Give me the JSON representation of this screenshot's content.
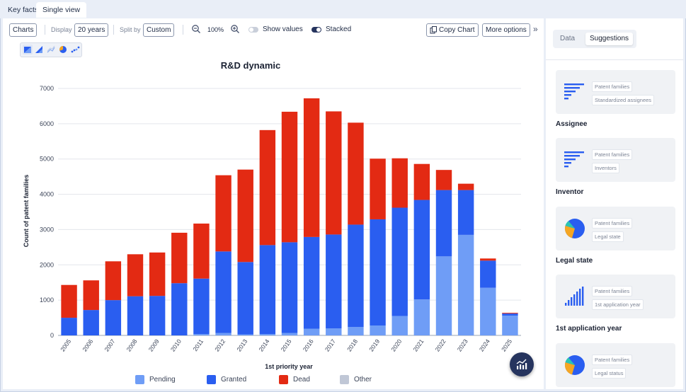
{
  "tabs": [
    {
      "label": "Key facts"
    },
    {
      "label": "Single view"
    }
  ],
  "toolbar": {
    "charts_label": "Charts",
    "display_label": "Display",
    "display_value": "20 years",
    "splitby_label": "Split by",
    "splitby_value": "Custom",
    "zoom_value": "100%",
    "show_values_label": "Show values",
    "show_values_on": false,
    "stacked_label": "Stacked",
    "stacked_on": true,
    "copy_chart_label": "Copy Chart",
    "more_options_label": "More options",
    "collapse_icon": "»"
  },
  "chart_types": [
    "bar-stacked-icon",
    "area-icon",
    "line-icon",
    "pie-icon",
    "scatter-icon"
  ],
  "colors": {
    "pending": "#6f9df6",
    "granted": "#2a5ef0",
    "dead": "#e32a13",
    "other": "#c0c7d6",
    "accent": "#26345e"
  },
  "chart_data": {
    "type": "bar",
    "stacked": true,
    "title": "R&D dynamic",
    "xlabel": "1st priority year",
    "ylabel": "Count of patent families",
    "ylim": [
      0,
      7000
    ],
    "yticks": [
      0,
      1000,
      2000,
      3000,
      4000,
      5000,
      6000,
      7000
    ],
    "grid": true,
    "legend_position": "bottom",
    "categories": [
      "2005",
      "2006",
      "2007",
      "2008",
      "2009",
      "2010",
      "2011",
      "2012",
      "2013",
      "2014",
      "2015",
      "2016",
      "2017",
      "2018",
      "2019",
      "2020",
      "2021",
      "2022",
      "2023",
      "2024",
      "2025"
    ],
    "series": [
      {
        "name": "Pending",
        "values": [
          0,
          0,
          0,
          0,
          0,
          0,
          40,
          70,
          30,
          40,
          70,
          190,
          200,
          240,
          280,
          550,
          1020,
          2240,
          2850,
          1350,
          560
        ]
      },
      {
        "name": "Granted",
        "values": [
          500,
          720,
          1000,
          1110,
          1120,
          1480,
          1570,
          2310,
          2050,
          2520,
          2570,
          2600,
          2660,
          2900,
          3010,
          3070,
          2820,
          1880,
          1270,
          770,
          60
        ]
      },
      {
        "name": "Dead",
        "values": [
          930,
          840,
          1100,
          1190,
          1230,
          1430,
          1560,
          2160,
          2620,
          3260,
          3700,
          3930,
          3490,
          2890,
          1720,
          1400,
          1020,
          570,
          180,
          60,
          20
        ]
      },
      {
        "name": "Other",
        "values": [
          0,
          0,
          0,
          0,
          0,
          0,
          0,
          0,
          0,
          0,
          0,
          0,
          0,
          0,
          0,
          0,
          0,
          0,
          0,
          0,
          0
        ]
      }
    ]
  },
  "sidebar": {
    "tabs": [
      {
        "label": "Data"
      },
      {
        "label": "Suggestions"
      }
    ],
    "cards": [
      {
        "chip1": "Patent families",
        "chip2": "Standardized assignees",
        "title": "Assignee",
        "icon": "bar-horizontal-icon"
      },
      {
        "chip1": "Patent families",
        "chip2": "Inventors",
        "title": "Inventor",
        "icon": "bar-horizontal-icon"
      },
      {
        "chip1": "Patent families",
        "chip2": "Legal state",
        "title": "Legal state",
        "icon": "pie-icon"
      },
      {
        "chip1": "Patent families",
        "chip2": "1st application year",
        "title": "1st application year",
        "icon": "bar-vertical-icon"
      },
      {
        "chip1": "Patent families",
        "chip2": "Legal status",
        "title": "",
        "icon": "pie-icon"
      }
    ]
  }
}
